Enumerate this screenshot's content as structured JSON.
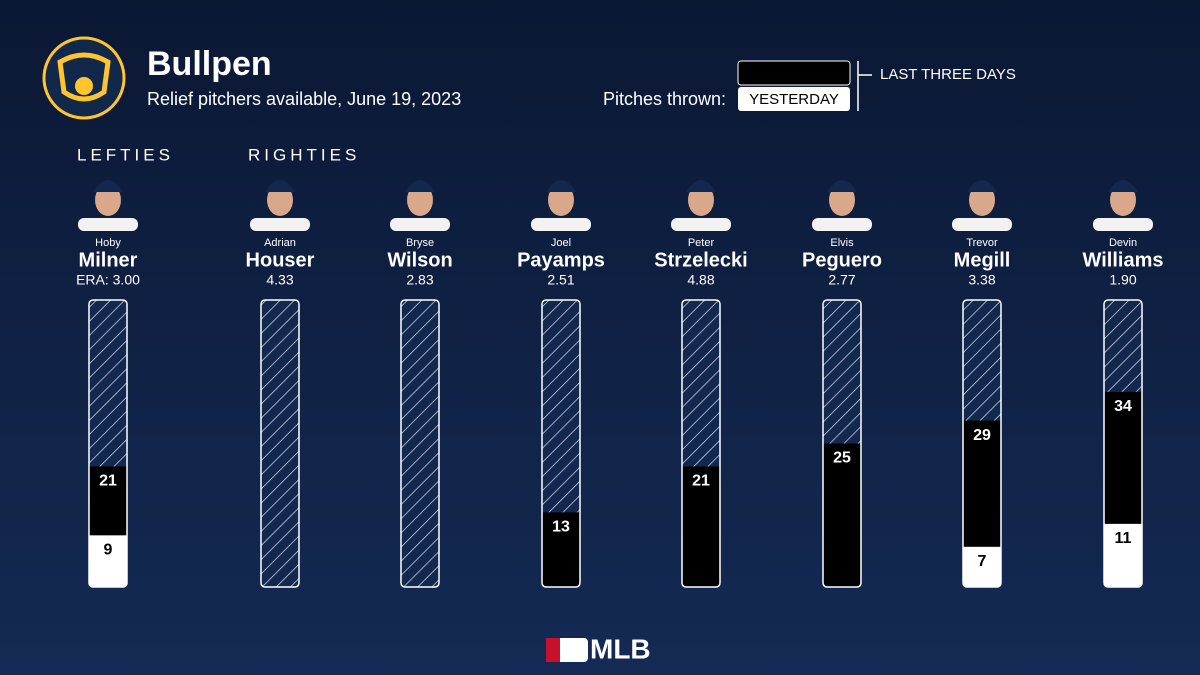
{
  "chart_data": {
    "type": "bar",
    "title": "Bullpen",
    "subtitle": "Relief pitchers available, June 19, 2023",
    "legend_title": "Pitches thrown:",
    "brand": "MLB",
    "groups": [
      "LEFTIES",
      "RIGHTIES"
    ],
    "first_names": [
      "Hoby",
      "Adrian",
      "Bryse",
      "Joel",
      "Peter",
      "Elvis",
      "Trevor",
      "Devin"
    ],
    "categories": [
      "Milner",
      "Houser",
      "Wilson",
      "Payamps",
      "Strzelecki",
      "Peguero",
      "Megill",
      "Williams"
    ],
    "era_labels": [
      "ERA: 3.00",
      "4.33",
      "2.83",
      "2.51",
      "4.88",
      "2.77",
      "3.38",
      "1.90"
    ],
    "series": [
      {
        "name": "LAST THREE DAYS",
        "color": "#000000",
        "values": [
          21,
          null,
          null,
          13,
          21,
          25,
          29,
          34
        ]
      },
      {
        "name": "YESTERDAY",
        "color": "#ffffff",
        "values": [
          9,
          null,
          null,
          null,
          null,
          null,
          7,
          11
        ]
      }
    ],
    "ylim": [
      0,
      50
    ]
  }
}
